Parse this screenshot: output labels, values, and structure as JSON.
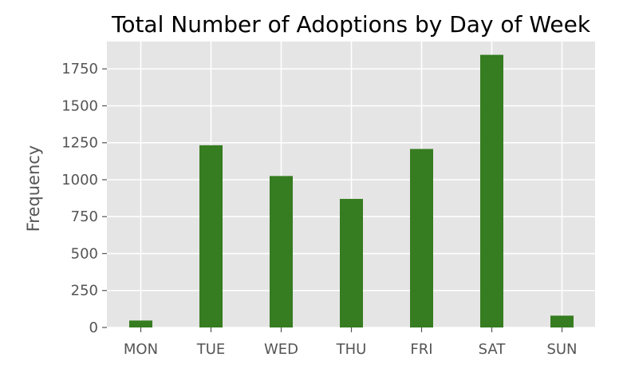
{
  "chart_data": {
    "type": "bar",
    "title": "Total Number of Adoptions by Day of Week",
    "xlabel": "",
    "ylabel": "Frequency",
    "categories": [
      "MON",
      "TUE",
      "WED",
      "THU",
      "FRI",
      "SAT",
      "SUN"
    ],
    "values": [
      47,
      1233,
      1025,
      870,
      1208,
      1845,
      80
    ],
    "ylim": [
      0,
      1935
    ],
    "yticks": [
      0,
      250,
      500,
      750,
      1000,
      1250,
      1500,
      1750
    ],
    "grid": true,
    "style": "ggplot",
    "colors": {
      "bar": "#367c21",
      "plot_background": "#e5e5e5",
      "grid": "#ffffff",
      "tick_text": "#555555",
      "title_text": "#000000"
    }
  }
}
